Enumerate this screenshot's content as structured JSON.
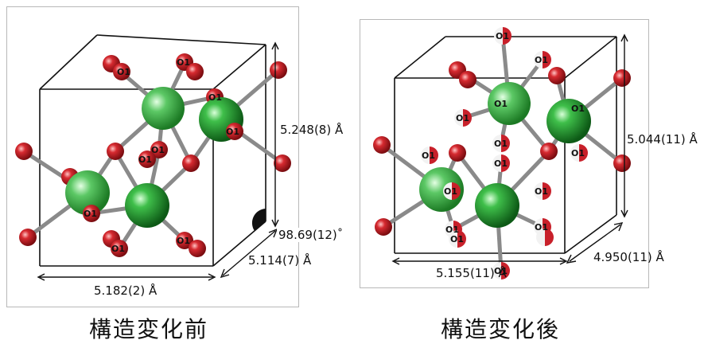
{
  "left_panel": {
    "caption": "構造変化前",
    "dims": {
      "height": "5.248(8) Å",
      "angle": "98.69(12)˚",
      "depth": "5.114(7) Å",
      "width": "5.182(2) Å"
    },
    "atom_label": "O1"
  },
  "right_panel": {
    "caption": "構造変化後",
    "dims": {
      "height": "5.044(11) Å",
      "depth": "4.950(11) Å",
      "width": "5.155(11) Å"
    },
    "atom_label": "O1"
  },
  "colors": {
    "metal_atom": "#1f8a2a",
    "oxygen_atom": "#c8202a",
    "bond": "#8a8a8a",
    "cell_edge": "#111111"
  }
}
